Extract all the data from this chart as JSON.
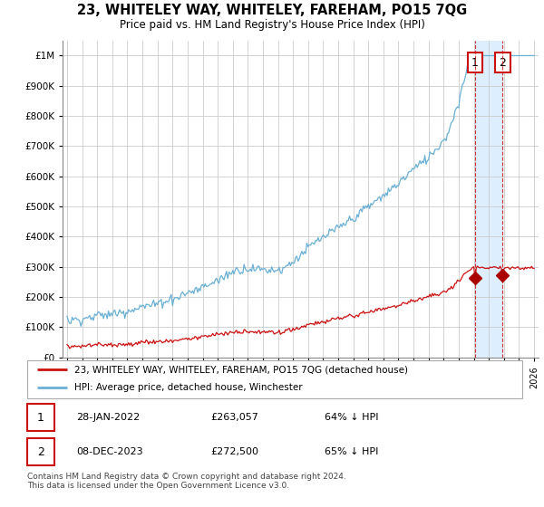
{
  "title": "23, WHITELEY WAY, WHITELEY, FAREHAM, PO15 7QG",
  "subtitle": "Price paid vs. HM Land Registry's House Price Index (HPI)",
  "legend_label1": "23, WHITELEY WAY, WHITELEY, FAREHAM, PO15 7QG (detached house)",
  "legend_label2": "HPI: Average price, detached house, Winchester",
  "footer": "Contains HM Land Registry data © Crown copyright and database right 2024.\nThis data is licensed under the Open Government Licence v3.0.",
  "annotation1_date": "28-JAN-2022",
  "annotation1_price": "£263,057",
  "annotation1_hpi": "64% ↓ HPI",
  "annotation2_date": "08-DEC-2023",
  "annotation2_price": "£272,500",
  "annotation2_hpi": "65% ↓ HPI",
  "ylim": [
    0,
    1050000
  ],
  "xlim_left": 1994.7,
  "xlim_right": 2026.3,
  "hpi_color": "#6ab0d4",
  "price_color": "#cc1111",
  "marker_color": "#aa0000",
  "point1_x": 2022.08,
  "point1_y": 263057,
  "point2_x": 2023.92,
  "point2_y": 272500,
  "shade_color": "#ddeeff",
  "grid_color": "#cccccc",
  "bg_color": "#ffffff"
}
